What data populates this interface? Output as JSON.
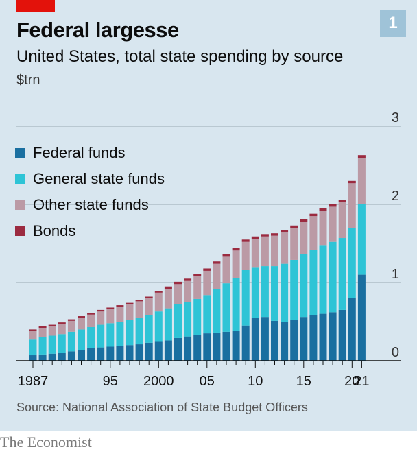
{
  "header": {
    "title": "Federal largesse",
    "subtitle": "United States, total state spending by source",
    "unit": "$trn",
    "chart_number": "1"
  },
  "source": "Source: National Association of State Budget Officers",
  "footer": "The Economist",
  "chart_data": {
    "type": "bar",
    "stacked": true,
    "title": "Federal largesse",
    "subtitle": "United States, total state spending by source",
    "ylabel": "$trn",
    "ylim": [
      0,
      3
    ],
    "yticks": [
      0,
      1,
      2,
      3
    ],
    "categories": [
      1987,
      1988,
      1989,
      1990,
      1991,
      1992,
      1993,
      1994,
      1995,
      1996,
      1997,
      1998,
      1999,
      2000,
      2001,
      2002,
      2003,
      2004,
      2005,
      2006,
      2007,
      2008,
      2009,
      2010,
      2011,
      2012,
      2013,
      2014,
      2015,
      2016,
      2017,
      2018,
      2019,
      2020,
      2021
    ],
    "xtick_labels": [
      {
        "x": 1987,
        "label": "1987"
      },
      {
        "x": 1995,
        "label": "95"
      },
      {
        "x": 2000,
        "label": "2000"
      },
      {
        "x": 2005,
        "label": "05"
      },
      {
        "x": 2010,
        "label": "10"
      },
      {
        "x": 2015,
        "label": "15"
      },
      {
        "x": 2020,
        "label": "20"
      },
      {
        "x": 2021,
        "label": "21"
      }
    ],
    "grid": true,
    "legend_position": "top-left",
    "series": [
      {
        "name": "Federal funds",
        "color": "#1a6fa0",
        "values": [
          0.07,
          0.08,
          0.09,
          0.1,
          0.12,
          0.14,
          0.16,
          0.17,
          0.18,
          0.19,
          0.2,
          0.21,
          0.23,
          0.25,
          0.26,
          0.29,
          0.31,
          0.33,
          0.35,
          0.36,
          0.37,
          0.38,
          0.45,
          0.55,
          0.56,
          0.51,
          0.5,
          0.52,
          0.56,
          0.58,
          0.6,
          0.62,
          0.65,
          0.8,
          1.1
        ]
      },
      {
        "name": "General state funds",
        "color": "#2ec4d6",
        "values": [
          0.2,
          0.22,
          0.23,
          0.24,
          0.25,
          0.26,
          0.27,
          0.29,
          0.3,
          0.31,
          0.32,
          0.34,
          0.35,
          0.38,
          0.41,
          0.43,
          0.44,
          0.46,
          0.49,
          0.56,
          0.62,
          0.68,
          0.71,
          0.64,
          0.65,
          0.7,
          0.74,
          0.77,
          0.8,
          0.84,
          0.88,
          0.9,
          0.92,
          0.9,
          0.9
        ]
      },
      {
        "name": "Other state funds",
        "color": "#bb9aa5",
        "values": [
          0.11,
          0.12,
          0.12,
          0.13,
          0.14,
          0.15,
          0.16,
          0.17,
          0.18,
          0.19,
          0.2,
          0.21,
          0.22,
          0.24,
          0.25,
          0.26,
          0.27,
          0.29,
          0.31,
          0.32,
          0.34,
          0.35,
          0.36,
          0.37,
          0.38,
          0.39,
          0.4,
          0.41,
          0.42,
          0.43,
          0.44,
          0.45,
          0.46,
          0.57,
          0.59
        ]
      },
      {
        "name": "Bonds",
        "color": "#9b2b40",
        "values": [
          0.02,
          0.02,
          0.02,
          0.02,
          0.02,
          0.02,
          0.02,
          0.02,
          0.02,
          0.02,
          0.02,
          0.02,
          0.02,
          0.02,
          0.03,
          0.03,
          0.03,
          0.03,
          0.03,
          0.03,
          0.03,
          0.03,
          0.03,
          0.03,
          0.03,
          0.03,
          0.03,
          0.03,
          0.03,
          0.03,
          0.03,
          0.03,
          0.03,
          0.03,
          0.04
        ]
      }
    ]
  }
}
